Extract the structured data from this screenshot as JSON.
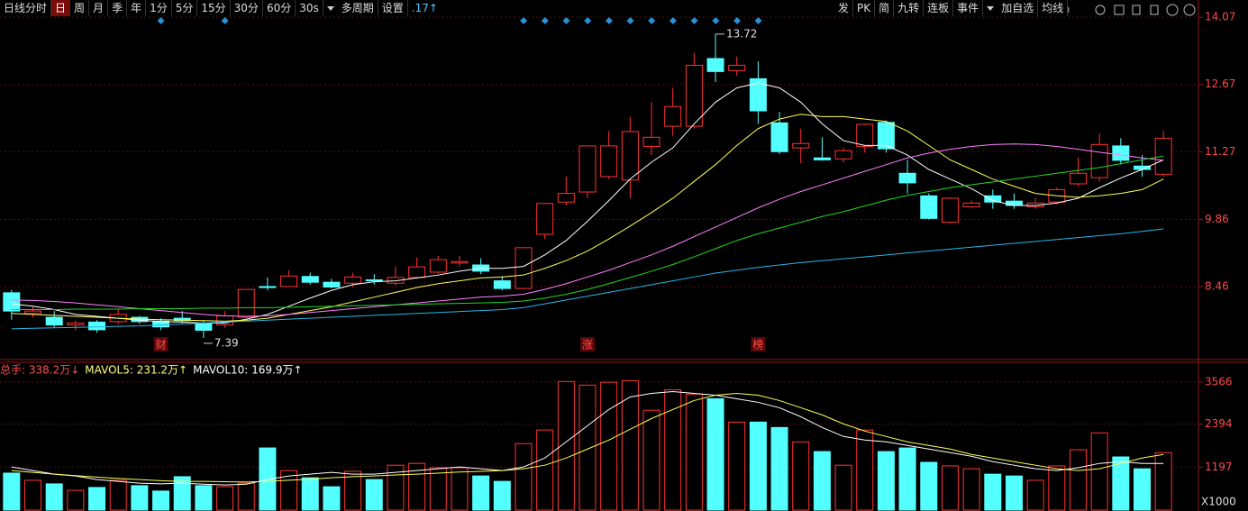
{
  "toolbar": {
    "left": [
      "日线分时",
      "日",
      "周",
      "月",
      "季",
      "年",
      "1分",
      "5分",
      "15分",
      "30分",
      "60分",
      "30s",
      "多周期",
      "设置",
      ".17↑"
    ],
    "right": [
      "发",
      "PK",
      "简",
      "九转",
      "连板",
      "事件",
      "加自选",
      "均线"
    ]
  },
  "chart_data": [
    {
      "type": "candlestick",
      "up_color": "#ff3232",
      "down_color": "#54ffff",
      "ylim": [
        7.07,
        14.43
      ],
      "yticks": [
        14.07,
        12.67,
        11.27,
        9.86,
        8.46
      ],
      "open": [
        8.33,
        7.9,
        7.82,
        7.66,
        7.72,
        7.73,
        7.82,
        7.74,
        7.8,
        7.7,
        7.66,
        7.82,
        8.46,
        8.46,
        8.67,
        8.55,
        8.53,
        8.6,
        8.53,
        8.65,
        8.76,
        8.95,
        8.91,
        8.58,
        8.42,
        9.55,
        10.22,
        10.43,
        10.75,
        10.68,
        11.38,
        11.8,
        11.8,
        13.21,
        12.96,
        12.79,
        11.87,
        11.35,
        11.14,
        11.12,
        11.38,
        11.88,
        10.82,
        10.35,
        9.8,
        10.12,
        10.35,
        10.24,
        10.12,
        10.22,
        10.6,
        10.73,
        11.39,
        10.97,
        10.8
      ],
      "high": [
        8.39,
        8.05,
        7.95,
        7.75,
        7.76,
        7.98,
        7.85,
        7.8,
        7.95,
        7.75,
        7.95,
        8.4,
        8.65,
        8.8,
        8.75,
        8.62,
        8.75,
        8.72,
        8.88,
        9.07,
        9.1,
        9.1,
        9.05,
        8.68,
        9.27,
        10.2,
        10.75,
        11.4,
        11.7,
        12.0,
        12.3,
        12.6,
        13.33,
        13.72,
        13.25,
        13.15,
        12.1,
        11.75,
        11.57,
        11.35,
        11.86,
        11.92,
        11.1,
        10.4,
        10.32,
        10.25,
        10.48,
        10.4,
        10.3,
        10.52,
        11.15,
        11.65,
        11.55,
        11.2,
        11.7
      ],
      "low": [
        7.77,
        7.82,
        7.6,
        7.55,
        7.5,
        7.68,
        7.68,
        7.55,
        7.7,
        7.39,
        7.6,
        7.8,
        8.38,
        8.45,
        8.5,
        8.42,
        8.45,
        8.5,
        8.48,
        8.62,
        8.72,
        8.88,
        8.72,
        8.38,
        8.4,
        9.45,
        10.15,
        10.3,
        10.7,
        10.3,
        11.2,
        11.6,
        11.75,
        12.72,
        12.85,
        11.85,
        11.22,
        11.03,
        11.08,
        11.05,
        11.25,
        11.25,
        10.4,
        9.86,
        9.78,
        10.1,
        10.08,
        10.08,
        10.08,
        10.18,
        10.55,
        10.65,
        11.0,
        10.75,
        10.75
      ],
      "close": [
        7.95,
        7.95,
        7.66,
        7.7,
        7.56,
        7.88,
        7.73,
        7.62,
        7.75,
        7.55,
        7.85,
        8.4,
        8.44,
        8.68,
        8.55,
        8.45,
        8.66,
        8.58,
        8.65,
        8.87,
        9.02,
        8.98,
        8.78,
        8.42,
        9.27,
        10.19,
        10.4,
        11.39,
        11.39,
        11.69,
        11.57,
        12.21,
        13.07,
        12.94,
        13.07,
        12.12,
        11.27,
        11.44,
        11.1,
        11.29,
        11.84,
        11.33,
        10.62,
        9.88,
        10.3,
        10.2,
        10.22,
        10.15,
        10.2,
        10.48,
        10.82,
        11.42,
        11.09,
        10.9,
        11.55
      ],
      "lines": [
        {
          "color": "#ffffff",
          "values": [
            8.1,
            8.05,
            7.98,
            7.88,
            7.84,
            7.8,
            7.76,
            7.73,
            7.72,
            7.7,
            7.7,
            7.78,
            7.88,
            8.05,
            8.22,
            8.38,
            8.5,
            8.56,
            8.58,
            8.64,
            8.7,
            8.78,
            8.84,
            8.84,
            8.88,
            9.12,
            9.42,
            9.82,
            10.25,
            10.7,
            11.05,
            11.35,
            11.85,
            12.3,
            12.6,
            12.7,
            12.6,
            12.3,
            11.85,
            11.5,
            11.4,
            11.4,
            11.2,
            10.9,
            10.7,
            10.5,
            10.25,
            10.15,
            10.15,
            10.2,
            10.3,
            10.52,
            10.72,
            10.9,
            11.1
          ]
        },
        {
          "color": "#ffff54",
          "values": [
            7.9,
            7.88,
            7.86,
            7.84,
            7.82,
            7.8,
            7.78,
            7.77,
            7.76,
            7.75,
            7.74,
            7.76,
            7.8,
            7.88,
            7.96,
            8.04,
            8.14,
            8.24,
            8.34,
            8.44,
            8.52,
            8.58,
            8.64,
            8.66,
            8.7,
            8.84,
            9.0,
            9.2,
            9.45,
            9.72,
            10.0,
            10.3,
            10.65,
            11.0,
            11.4,
            11.75,
            11.95,
            12.05,
            12.0,
            12.0,
            11.95,
            11.9,
            11.7,
            11.4,
            11.1,
            10.9,
            10.7,
            10.55,
            10.4,
            10.35,
            10.32,
            10.35,
            10.4,
            10.48,
            10.7
          ]
        },
        {
          "color": "#ff80ff",
          "values": [
            8.18,
            8.17,
            8.15,
            8.12,
            8.08,
            8.04,
            8.0,
            7.96,
            7.92,
            7.88,
            7.85,
            7.84,
            7.85,
            7.88,
            7.92,
            7.96,
            8.0,
            8.04,
            8.08,
            8.12,
            8.16,
            8.2,
            8.24,
            8.26,
            8.3,
            8.4,
            8.52,
            8.66,
            8.8,
            8.96,
            9.12,
            9.3,
            9.5,
            9.7,
            9.9,
            10.1,
            10.28,
            10.44,
            10.58,
            10.72,
            10.86,
            11.0,
            11.14,
            11.24,
            11.32,
            11.38,
            11.42,
            11.43,
            11.42,
            11.38,
            11.32,
            11.26,
            11.2,
            11.14,
            11.09
          ]
        },
        {
          "color": "#22d822",
          "values": [
            7.98,
            7.98,
            7.98,
            7.99,
            7.99,
            7.99,
            8.0,
            8.0,
            8.0,
            8.01,
            8.01,
            8.02,
            8.02,
            8.03,
            8.04,
            8.05,
            8.06,
            8.07,
            8.08,
            8.09,
            8.1,
            8.11,
            8.12,
            8.13,
            8.16,
            8.22,
            8.3,
            8.4,
            8.52,
            8.65,
            8.78,
            8.92,
            9.08,
            9.25,
            9.42,
            9.56,
            9.68,
            9.8,
            9.92,
            10.02,
            10.14,
            10.26,
            10.36,
            10.44,
            10.52,
            10.58,
            10.64,
            10.7,
            10.76,
            10.82,
            10.88,
            10.94,
            11.02,
            11.1,
            11.18
          ]
        },
        {
          "color": "#27b6e6",
          "values": [
            7.58,
            7.59,
            7.6,
            7.61,
            7.62,
            7.63,
            7.64,
            7.66,
            7.68,
            7.7,
            7.72,
            7.74,
            7.76,
            7.78,
            7.8,
            7.82,
            7.84,
            7.86,
            7.88,
            7.9,
            7.92,
            7.94,
            7.96,
            7.98,
            8.02,
            8.1,
            8.18,
            8.26,
            8.34,
            8.42,
            8.5,
            8.58,
            8.66,
            8.74,
            8.8,
            8.86,
            8.91,
            8.96,
            9.0,
            9.04,
            9.08,
            9.12,
            9.16,
            9.2,
            9.24,
            9.28,
            9.32,
            9.36,
            9.4,
            9.44,
            9.48,
            9.52,
            9.56,
            9.61,
            9.66
          ]
        }
      ],
      "events": [
        null,
        null,
        null,
        null,
        null,
        null,
        null,
        "财",
        null,
        null,
        null,
        null,
        null,
        null,
        null,
        null,
        null,
        null,
        null,
        null,
        null,
        null,
        null,
        null,
        null,
        null,
        null,
        "涨",
        null,
        null,
        null,
        null,
        null,
        null,
        null,
        "榜",
        null,
        null,
        null,
        null,
        null,
        null,
        null,
        null,
        null,
        null,
        null,
        null,
        null,
        null,
        null,
        null,
        null,
        null,
        null
      ]
    },
    {
      "type": "bar",
      "ylim": [
        0,
        4090
      ],
      "yticks": [
        3566,
        2394,
        1197
      ],
      "unit_label": "X1000",
      "legend": [
        {
          "text": "总手: 338.2万↓",
          "color": "#ff5050"
        },
        {
          "text": "MAVOL5: 231.2万↑",
          "color": "#ffff80"
        },
        {
          "text": "MAVOL10: 169.9万↑",
          "color": "#ffffff"
        }
      ],
      "values": [
        1030,
        830,
        730,
        550,
        630,
        830,
        680,
        530,
        930,
        680,
        650,
        750,
        1730,
        1100,
        900,
        650,
        1080,
        850,
        1250,
        1300,
        1180,
        1180,
        950,
        800,
        1850,
        2230,
        3580,
        3480,
        3560,
        3600,
        2780,
        3350,
        3230,
        3100,
        2450,
        2450,
        2300,
        1900,
        1630,
        1250,
        2230,
        1630,
        1730,
        1330,
        1230,
        1150,
        1000,
        950,
        830,
        1230,
        1680,
        2150,
        1480,
        1150,
        1600
      ],
      "lines": [
        {
          "color": "#ffffff",
          "values": [
            1200,
            1100,
            1000,
            950,
            850,
            800,
            750,
            730,
            750,
            720,
            700,
            720,
            850,
            950,
            1000,
            1050,
            1000,
            1000,
            1050,
            1100,
            1150,
            1200,
            1150,
            1100,
            1200,
            1450,
            1900,
            2350,
            2800,
            3150,
            3250,
            3300,
            3250,
            3200,
            3100,
            3000,
            2850,
            2600,
            2300,
            2050,
            1950,
            1900,
            1800,
            1700,
            1600,
            1500,
            1350,
            1250,
            1150,
            1100,
            1180,
            1300,
            1350,
            1300,
            1300
          ]
        },
        {
          "color": "#ffff54",
          "values": [
            1100,
            1050,
            1000,
            960,
            920,
            880,
            850,
            820,
            800,
            800,
            790,
            780,
            800,
            830,
            860,
            900,
            930,
            950,
            980,
            1000,
            1030,
            1060,
            1080,
            1100,
            1150,
            1250,
            1450,
            1700,
            1950,
            2250,
            2550,
            2800,
            3050,
            3200,
            3250,
            3200,
            3050,
            2850,
            2650,
            2400,
            2200,
            2050,
            1900,
            1800,
            1700,
            1550,
            1450,
            1350,
            1250,
            1150,
            1100,
            1150,
            1300,
            1450,
            1550
          ]
        }
      ]
    }
  ]
}
